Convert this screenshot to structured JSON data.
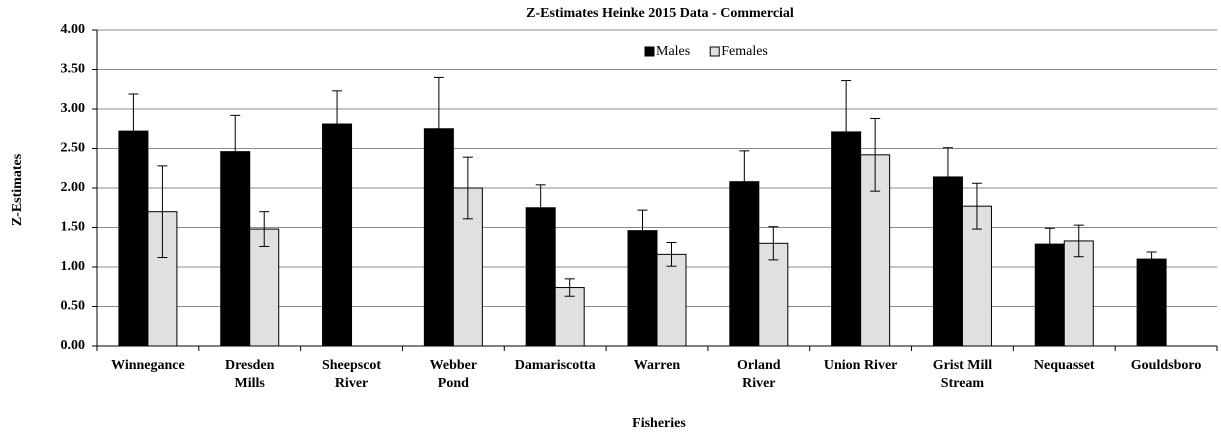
{
  "chart_data": {
    "type": "bar",
    "title": "Z-Estimates Heinke 2015 Data - Commercial",
    "x_label": "Fisheries",
    "y_label": "Z-Estimates",
    "categories": [
      "Winnegance",
      "Dresden\nMills",
      "Sheepscot\nRiver",
      "Webber\nPond",
      "Damariscotta",
      "Warren",
      "Orland\nRiver",
      "Union River",
      "Grist Mill\nStream",
      "Nequasset",
      "Gouldsboro"
    ],
    "series": [
      {
        "name": "Males",
        "color": "#000000",
        "values": [
          2.72,
          2.46,
          2.81,
          2.75,
          1.75,
          1.46,
          2.08,
          2.71,
          2.14,
          1.29,
          1.1
        ],
        "errors": [
          0.47,
          0.46,
          0.42,
          0.65,
          0.29,
          0.26,
          0.39,
          0.65,
          0.37,
          0.2,
          0.09
        ]
      },
      {
        "name": "Females",
        "color": "#e0e0e0",
        "values": [
          1.7,
          1.48,
          null,
          2.0,
          0.74,
          1.16,
          1.3,
          2.42,
          1.77,
          1.33,
          null
        ],
        "errors": [
          0.58,
          0.22,
          null,
          0.39,
          0.11,
          0.15,
          0.21,
          0.46,
          0.29,
          0.2,
          null
        ]
      }
    ],
    "ylim": [
      0,
      4
    ],
    "yticks": [
      {
        "value": 0,
        "label": "0.00"
      },
      {
        "value": 0.5,
        "label": "0.50"
      },
      {
        "value": 1,
        "label": "1.00"
      },
      {
        "value": 1.5,
        "label": "1.50"
      },
      {
        "value": 2,
        "label": "2.00"
      },
      {
        "value": 2.5,
        "label": "2.50"
      },
      {
        "value": 3,
        "label": "3.00"
      },
      {
        "value": 3.5,
        "label": "3.50"
      },
      {
        "value": 4,
        "label": "4.00"
      }
    ],
    "grid": true,
    "legend": "top"
  }
}
